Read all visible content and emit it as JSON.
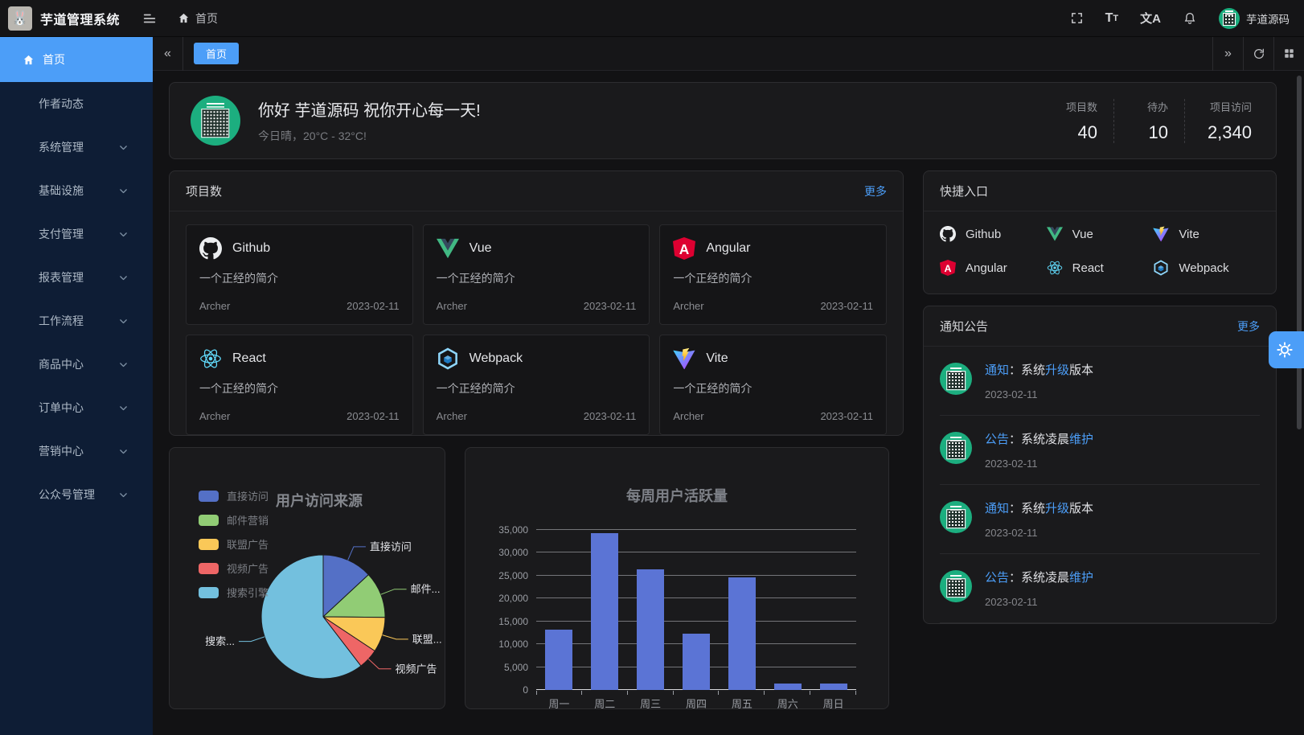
{
  "app": {
    "title": "芋道管理系统"
  },
  "header": {
    "breadcrumb_home": "首页",
    "font_icon_big": "T",
    "font_icon_small": "T",
    "locale_icon_text": "文A",
    "user_name": "芋道源码"
  },
  "tabbar": {
    "collapse_left": "«",
    "collapse_right": "»",
    "tabs": [
      {
        "key": "home",
        "label": "首页",
        "active": true
      }
    ]
  },
  "sidebar": {
    "items": [
      {
        "key": "home",
        "label": "首页",
        "icon": "home",
        "active": true,
        "expandable": false
      },
      {
        "key": "author-dynamics",
        "label": "作者动态",
        "expandable": false
      },
      {
        "key": "system-management",
        "label": "系统管理",
        "expandable": true
      },
      {
        "key": "infrastructure",
        "label": "基础设施",
        "expandable": true
      },
      {
        "key": "payment-management",
        "label": "支付管理",
        "expandable": true
      },
      {
        "key": "report-management",
        "label": "报表管理",
        "expandable": true
      },
      {
        "key": "workflow",
        "label": "工作流程",
        "expandable": true
      },
      {
        "key": "product-center",
        "label": "商品中心",
        "expandable": true
      },
      {
        "key": "order-center",
        "label": "订单中心",
        "expandable": true
      },
      {
        "key": "marketing-center",
        "label": "营销中心",
        "expandable": true
      },
      {
        "key": "official-account",
        "label": "公众号管理",
        "expandable": true
      }
    ]
  },
  "welcome": {
    "greeting": "你好 芋道源码 祝你开心每一天!",
    "weather": "今日晴，20°C - 32°C!",
    "stats": [
      {
        "label": "项目数",
        "value": "40"
      },
      {
        "label": "待办",
        "value": "10"
      },
      {
        "label": "项目访问",
        "value": "2,340"
      }
    ]
  },
  "projects": {
    "title": "项目数",
    "more_label": "更多",
    "items": [
      {
        "key": "github",
        "name": "Github",
        "icon": "github",
        "desc": "一个正经的简介",
        "author": "Archer",
        "date": "2023-02-11"
      },
      {
        "key": "vue",
        "name": "Vue",
        "icon": "vue",
        "desc": "一个正经的简介",
        "author": "Archer",
        "date": "2023-02-11"
      },
      {
        "key": "angular",
        "name": "Angular",
        "icon": "angular",
        "desc": "一个正经的简介",
        "author": "Archer",
        "date": "2023-02-11"
      },
      {
        "key": "react",
        "name": "React",
        "icon": "react",
        "desc": "一个正经的简介",
        "author": "Archer",
        "date": "2023-02-11"
      },
      {
        "key": "webpack",
        "name": "Webpack",
        "icon": "webpack",
        "desc": "一个正经的简介",
        "author": "Archer",
        "date": "2023-02-11"
      },
      {
        "key": "vite",
        "name": "Vite",
        "icon": "vite",
        "desc": "一个正经的简介",
        "author": "Archer",
        "date": "2023-02-11"
      }
    ]
  },
  "shortcuts": {
    "title": "快捷入口",
    "items": [
      {
        "key": "github",
        "label": "Github",
        "icon": "github"
      },
      {
        "key": "vue",
        "label": "Vue",
        "icon": "vue"
      },
      {
        "key": "vite",
        "label": "Vite",
        "icon": "vite"
      },
      {
        "key": "angular",
        "label": "Angular",
        "icon": "angular"
      },
      {
        "key": "react",
        "label": "React",
        "icon": "react"
      },
      {
        "key": "webpack",
        "label": "Webpack",
        "icon": "webpack"
      }
    ]
  },
  "notices": {
    "title": "通知公告",
    "more_label": "更多",
    "items": [
      {
        "segments": [
          {
            "text": "通知",
            "accent": true
          },
          {
            "text": "：系统",
            "accent": false
          },
          {
            "text": "升级",
            "accent": true
          },
          {
            "text": "版本",
            "accent": false
          }
        ],
        "date": "2023-02-11"
      },
      {
        "segments": [
          {
            "text": "公告",
            "accent": true
          },
          {
            "text": "：系统凌晨",
            "accent": false
          },
          {
            "text": "维护",
            "accent": true
          }
        ],
        "date": "2023-02-11"
      },
      {
        "segments": [
          {
            "text": "通知",
            "accent": true
          },
          {
            "text": "：系统",
            "accent": false
          },
          {
            "text": "升级",
            "accent": true
          },
          {
            "text": "版本",
            "accent": false
          }
        ],
        "date": "2023-02-11"
      },
      {
        "segments": [
          {
            "text": "公告",
            "accent": true
          },
          {
            "text": "：系统凌晨",
            "accent": false
          },
          {
            "text": "维护",
            "accent": true
          }
        ],
        "date": "2023-02-11"
      }
    ]
  },
  "colors": {
    "primary": "#4c9ef8",
    "bar": "#5b74d5"
  },
  "chart_data": [
    {
      "type": "pie",
      "title": "用户访问来源",
      "legend_position": "top-left-vertical",
      "series": [
        {
          "name": "直接访问",
          "value": 335,
          "color": "#5470c6",
          "display_label": "直接访问"
        },
        {
          "name": "邮件营销",
          "value": 310,
          "color": "#91cc75",
          "display_label": "邮件..."
        },
        {
          "name": "联盟广告",
          "value": 234,
          "color": "#fac858",
          "display_label": "联盟..."
        },
        {
          "name": "视频广告",
          "value": 135,
          "color": "#ee6666",
          "display_label": "视频广告"
        },
        {
          "name": "搜索引擎",
          "value": 1548,
          "color": "#73c0de",
          "display_label": "搜索..."
        }
      ]
    },
    {
      "type": "bar",
      "title": "每周用户活跃量",
      "categories": [
        "周一",
        "周二",
        "周三",
        "周四",
        "周五",
        "周六",
        "周日"
      ],
      "values": [
        13253,
        34235,
        26321,
        12340,
        24643,
        1322,
        1324
      ],
      "ylim": [
        0,
        35000
      ],
      "ytick_step": 5000,
      "bar_color": "#5b74d5",
      "grid": true
    }
  ]
}
